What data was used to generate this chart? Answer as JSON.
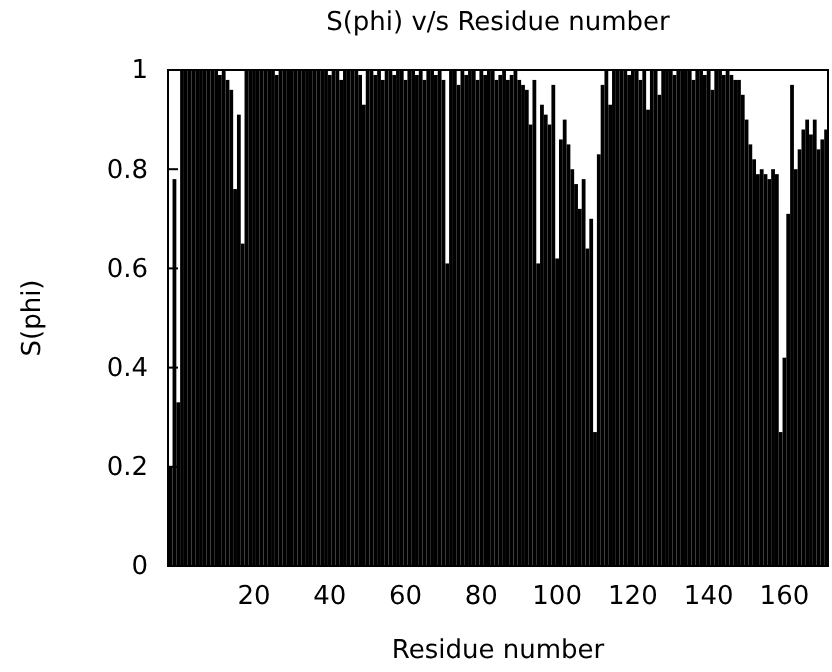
{
  "chart_data": {
    "type": "bar",
    "title": "S(phi) v/s Residue number",
    "xlabel": "Residue number",
    "ylabel": "S(phi)",
    "color": "#000000",
    "x": [
      -2,
      -1,
      0,
      1,
      2,
      3,
      4,
      5,
      6,
      7,
      8,
      9,
      10,
      11,
      12,
      13,
      14,
      15,
      16,
      17,
      18,
      19,
      20,
      21,
      22,
      23,
      24,
      25,
      26,
      27,
      28,
      29,
      30,
      31,
      32,
      33,
      34,
      35,
      36,
      37,
      38,
      39,
      40,
      41,
      42,
      43,
      44,
      45,
      46,
      47,
      48,
      49,
      50,
      51,
      52,
      53,
      54,
      55,
      56,
      57,
      58,
      59,
      60,
      61,
      62,
      63,
      64,
      65,
      66,
      67,
      68,
      69,
      70,
      71,
      72,
      73,
      74,
      75,
      76,
      77,
      78,
      79,
      80,
      81,
      82,
      83,
      84,
      85,
      86,
      87,
      88,
      89,
      90,
      91,
      92,
      93,
      94,
      95,
      96,
      97,
      98,
      99,
      100,
      101,
      102,
      103,
      104,
      105,
      106,
      107,
      108,
      109,
      110,
      111,
      112,
      113,
      114,
      115,
      116,
      117,
      118,
      119,
      120,
      121,
      122,
      123,
      124,
      125,
      126,
      127,
      128,
      129,
      130,
      131,
      132,
      133,
      134,
      135,
      136,
      137,
      138,
      139,
      140,
      141,
      142,
      143,
      144,
      145,
      146,
      147,
      148,
      149,
      150,
      151,
      152,
      153,
      154,
      155,
      156,
      157,
      158,
      159,
      160,
      161,
      162,
      163,
      164,
      165,
      166,
      167,
      168,
      169,
      170,
      171
    ],
    "values": [
      0.2,
      0.78,
      0.33,
      1,
      1,
      1,
      1,
      1,
      1,
      1,
      1,
      1,
      1,
      0.99,
      1,
      0.98,
      0.96,
      0.76,
      0.91,
      0.65,
      1,
      1,
      1,
      1,
      1,
      1,
      1,
      1,
      0.99,
      1,
      1,
      1,
      1,
      1,
      1,
      1,
      1,
      1,
      1,
      1,
      1,
      1,
      0.99,
      1,
      1,
      0.98,
      1,
      1,
      1,
      1,
      0.99,
      0.93,
      1,
      1,
      0.99,
      1,
      0.98,
      1,
      1,
      0.99,
      1,
      1,
      0.98,
      1,
      1,
      0.99,
      1,
      0.98,
      1,
      1,
      0.99,
      1,
      0.98,
      0.61,
      1,
      1,
      0.97,
      1,
      0.99,
      1,
      1,
      0.98,
      1,
      0.99,
      1,
      1,
      0.98,
      0.99,
      1,
      0.98,
      0.99,
      1,
      0.98,
      0.97,
      0.96,
      0.89,
      0.98,
      0.61,
      0.93,
      0.91,
      0.89,
      0.97,
      0.62,
      0.86,
      0.9,
      0.85,
      0.8,
      0.77,
      0.72,
      0.78,
      0.64,
      0.7,
      0.27,
      0.83,
      0.97,
      1,
      0.93,
      1,
      1,
      1,
      1,
      0.99,
      1,
      1,
      0.98,
      1,
      0.92,
      1,
      1,
      0.95,
      1,
      1,
      1,
      0.99,
      1,
      1,
      1,
      1,
      0.98,
      1,
      1,
      0.99,
      1,
      0.96,
      1,
      1,
      0.99,
      1,
      0.99,
      0.98,
      0.98,
      0.95,
      0.9,
      0.85,
      0.82,
      0.79,
      0.8,
      0.79,
      0.78,
      0.8,
      0.79,
      0.27,
      0.42,
      0.71,
      0.97,
      0.8,
      0.84,
      0.88,
      0.9,
      0.87,
      0.9,
      0.84,
      0.86,
      0.88
    ],
    "xlim": [
      -2.7,
      171.5
    ],
    "ylim": [
      0,
      1
    ],
    "xticks": [
      20,
      40,
      60,
      80,
      100,
      120,
      140,
      160
    ],
    "yticks": [
      0,
      0.2,
      0.4,
      0.6,
      0.8,
      1
    ]
  }
}
